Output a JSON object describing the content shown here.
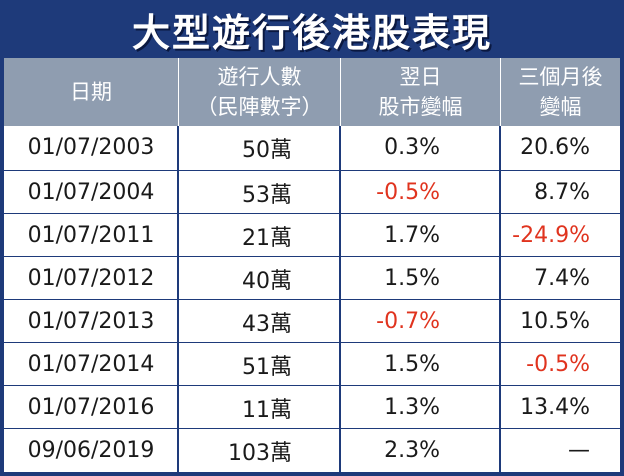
{
  "title": "大型遊行後港股表現",
  "columns": {
    "date": "日期",
    "crowd_line1": "遊行人數",
    "crowd_line2": "（民陣數字）",
    "next_line1": "翌日",
    "next_line2": "股市變幅",
    "three_line1": "三個月後",
    "three_line2": "變幅"
  },
  "rows": [
    {
      "date": "01/07/2003",
      "crowd": "50萬",
      "next_day": "0.3%",
      "three_month": "20.6%"
    },
    {
      "date": "01/07/2004",
      "crowd": "53萬",
      "next_day": "-0.5%",
      "three_month": "8.7%"
    },
    {
      "date": "01/07/2011",
      "crowd": "21萬",
      "next_day": "1.7%",
      "three_month": "-24.9%"
    },
    {
      "date": "01/07/2012",
      "crowd": "40萬",
      "next_day": "1.5%",
      "three_month": "7.4%"
    },
    {
      "date": "01/07/2013",
      "crowd": "43萬",
      "next_day": "-0.7%",
      "three_month": "10.5%"
    },
    {
      "date": "01/07/2014",
      "crowd": "51萬",
      "next_day": "1.5%",
      "three_month": "-0.5%"
    },
    {
      "date": "01/07/2016",
      "crowd": "11萬",
      "next_day": "1.3%",
      "three_month": "13.4%"
    },
    {
      "date": "09/06/2019",
      "crowd": "103萬",
      "next_day": "2.3%",
      "three_month": "—"
    }
  ],
  "colors": {
    "frame": "#1e3a7a",
    "header_bg": "#8f9db0",
    "negative": "#e0331e"
  }
}
